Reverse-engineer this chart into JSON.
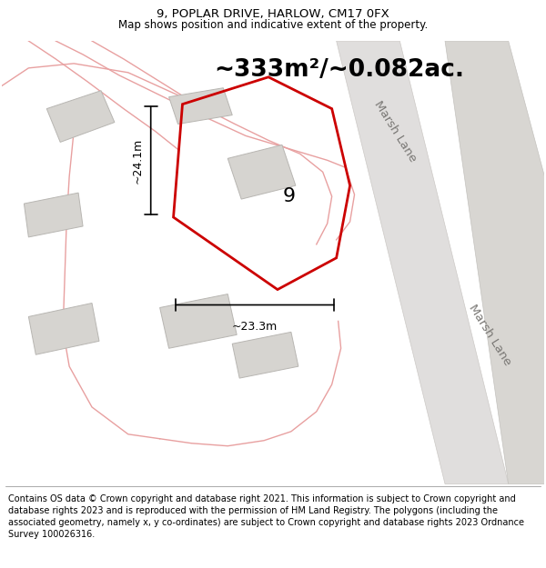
{
  "title": "9, POPLAR DRIVE, HARLOW, CM17 0FX",
  "subtitle": "Map shows position and indicative extent of the property.",
  "area_text": "~333m²/~0.082ac.",
  "width_label": "~23.3m",
  "height_label": "~24.1m",
  "number_label": "9",
  "road_label_1": "Marsh Lane",
  "road_label_2": "Marsh Lane",
  "disclaimer": "Contains OS data © Crown copyright and database right 2021. This information is subject to Crown copyright and database rights 2023 and is reproduced with the permission of HM Land Registry. The polygons (including the associated geometry, namely x, y co-ordinates) are subject to Crown copyright and database rights 2023 Ordnance Survey 100026316.",
  "bg_color": "#f2f0ed",
  "building_fill": "#d6d4d0",
  "building_stroke": "#b8b6b2",
  "plot_stroke": "#cc0000",
  "pink_road_color": "#e8a0a0",
  "road_fill_light": "#eae8e4",
  "road_fill_gray": "#dcdad6",
  "title_fontsize": 9.5,
  "subtitle_fontsize": 8.5,
  "area_fontsize": 19,
  "label_fontsize": 9,
  "number_fontsize": 16,
  "disclaimer_fontsize": 7.0,
  "road_label_fontsize": 9.5
}
